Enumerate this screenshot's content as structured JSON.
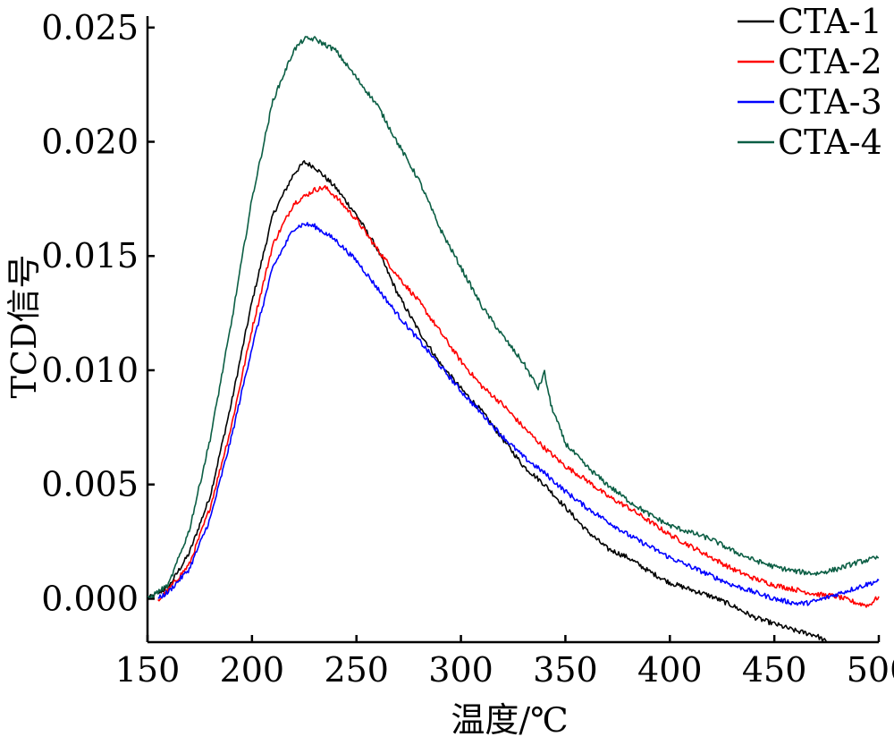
{
  "chart_data": {
    "type": "line",
    "title": "",
    "xlabel": "温度/℃",
    "ylabel": "TCD信号",
    "xlim": [
      150,
      500
    ],
    "ylim": [
      -0.0019,
      0.0255
    ],
    "x_ticks": [
      "150",
      "200",
      "250",
      "300",
      "350",
      "400",
      "450",
      "500"
    ],
    "y_ticks": [
      "0.000",
      "0.005",
      "0.010",
      "0.015",
      "0.020",
      "0.025"
    ],
    "grid": false,
    "legend_position": "top-right",
    "series": [
      {
        "name": "CTA-1",
        "color": "#000000",
        "x": [
          150,
          160,
          170,
          180,
          190,
          200,
          210,
          220,
          225,
          230,
          240,
          250,
          260,
          270,
          280,
          290,
          300,
          310,
          320,
          330,
          340,
          350,
          360,
          370,
          380,
          390,
          400,
          410,
          420,
          430,
          440,
          450,
          460,
          470,
          475
        ],
        "y": [
          0.0,
          0.0005,
          0.002,
          0.0045,
          0.0085,
          0.013,
          0.0168,
          0.0186,
          0.0191,
          0.0189,
          0.018,
          0.0168,
          0.0153,
          0.0133,
          0.0117,
          0.0103,
          0.0092,
          0.0082,
          0.007,
          0.0058,
          0.005,
          0.004,
          0.003,
          0.0022,
          0.0018,
          0.0012,
          0.0007,
          0.0004,
          0.0001,
          -0.0003,
          -0.0008,
          -0.0011,
          -0.0014,
          -0.0016,
          -0.0019
        ]
      },
      {
        "name": "CTA-2",
        "color": "#ff0000",
        "x": [
          155,
          160,
          170,
          180,
          190,
          200,
          210,
          220,
          230,
          235,
          240,
          250,
          260,
          270,
          280,
          290,
          300,
          310,
          320,
          330,
          340,
          350,
          360,
          370,
          380,
          390,
          400,
          410,
          420,
          430,
          440,
          450,
          460,
          470,
          480,
          490,
          495,
          500
        ],
        "y": [
          -0.0001,
          0.0004,
          0.0015,
          0.004,
          0.0075,
          0.0118,
          0.0155,
          0.0173,
          0.0179,
          0.018,
          0.0176,
          0.0166,
          0.0153,
          0.0141,
          0.013,
          0.0117,
          0.0104,
          0.0093,
          0.0085,
          0.0075,
          0.0066,
          0.0058,
          0.0052,
          0.0045,
          0.004,
          0.0034,
          0.0028,
          0.0023,
          0.0018,
          0.0013,
          0.0009,
          0.0006,
          0.0004,
          0.0002,
          0.0001,
          -0.0002,
          -0.0003,
          0.0001
        ]
      },
      {
        "name": "CTA-3",
        "color": "#0000ff",
        "x": [
          155,
          160,
          170,
          180,
          190,
          200,
          210,
          220,
          225,
          230,
          240,
          250,
          260,
          270,
          280,
          290,
          300,
          310,
          320,
          330,
          340,
          350,
          360,
          370,
          380,
          390,
          400,
          410,
          420,
          430,
          440,
          450,
          460,
          465,
          470,
          480,
          490,
          500
        ],
        "y": [
          0.0,
          0.0003,
          0.0013,
          0.0035,
          0.007,
          0.011,
          0.0145,
          0.0162,
          0.0164,
          0.0163,
          0.0157,
          0.0148,
          0.0136,
          0.0124,
          0.0113,
          0.0102,
          0.0091,
          0.0081,
          0.0071,
          0.0062,
          0.0055,
          0.0047,
          0.004,
          0.0034,
          0.0028,
          0.0023,
          0.0018,
          0.0014,
          0.001,
          0.0006,
          0.0003,
          0.0,
          -0.0002,
          -0.0002,
          -0.0001,
          0.0002,
          0.0005,
          0.0008
        ]
      },
      {
        "name": "CTA-4",
        "color": "#0b5e44",
        "x": [
          150,
          160,
          170,
          180,
          190,
          200,
          210,
          220,
          225,
          230,
          240,
          250,
          260,
          270,
          280,
          290,
          300,
          310,
          320,
          330,
          337,
          340,
          343,
          350,
          360,
          370,
          380,
          390,
          400,
          410,
          420,
          430,
          440,
          450,
          460,
          470,
          480,
          490,
          500
        ],
        "y": [
          0.0,
          0.0006,
          0.003,
          0.007,
          0.012,
          0.0175,
          0.0218,
          0.024,
          0.0245,
          0.0245,
          0.024,
          0.0228,
          0.0216,
          0.0199,
          0.0183,
          0.0162,
          0.0145,
          0.0128,
          0.0115,
          0.0103,
          0.0092,
          0.0099,
          0.0085,
          0.0068,
          0.0058,
          0.005,
          0.0043,
          0.0037,
          0.0032,
          0.0029,
          0.0026,
          0.0021,
          0.0017,
          0.0014,
          0.0012,
          0.0011,
          0.0013,
          0.0016,
          0.0018
        ]
      }
    ]
  }
}
